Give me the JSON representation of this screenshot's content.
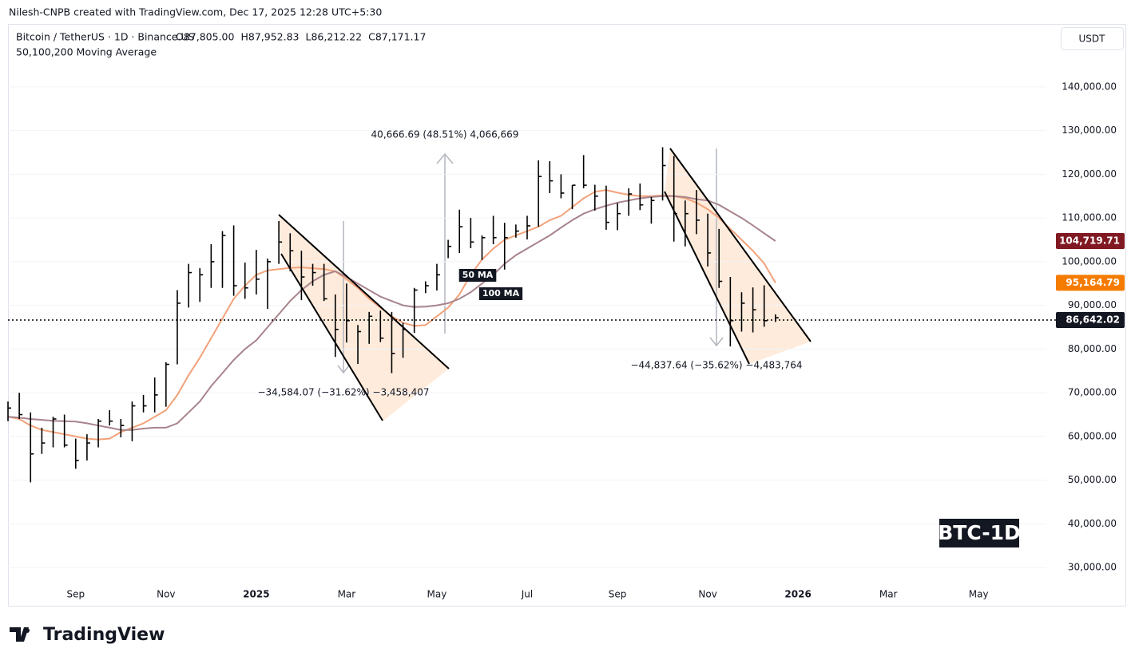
{
  "header": {
    "attribution": "Nilesh-CNPB created with TradingView.com, Dec 17, 2025 12:28 UTC+5:30"
  },
  "footer": {
    "brand": "TradingView"
  },
  "chart_data": {
    "type": "ohlc",
    "title": "Bitcoin / TetherUS · 1D · Binance.US",
    "ohlc_labels": [
      "O87,805.00",
      "H87,952.83",
      "L86,212.22",
      "C87,171.17"
    ],
    "subtitle": "50,100,200 Moving Average",
    "currency": "USDT",
    "watermark": "BTC-1D",
    "measurements": [
      "40,666.69 (48.51%) 4,066,669",
      "−34,584.07 (−31.62%) −3,458,407",
      "−44,837.64 (−35.62%) −4,483,764"
    ],
    "categories": [
      null,
      null,
      null,
      null,
      null,
      null,
      "Sep",
      null,
      null,
      null,
      null,
      null,
      null,
      null,
      "Nov",
      null,
      null,
      null,
      null,
      null,
      null,
      null,
      "2025",
      null,
      null,
      null,
      null,
      null,
      null,
      null,
      "Mar",
      null,
      null,
      null,
      null,
      null,
      null,
      null,
      "May",
      null,
      null,
      null,
      null,
      null,
      null,
      null,
      "Jul",
      null,
      null,
      null,
      null,
      null,
      null,
      null,
      "Sep",
      null,
      null,
      null,
      null,
      null,
      null,
      null,
      "Nov",
      null,
      null,
      null,
      null,
      null,
      null,
      null,
      "2026",
      null,
      null,
      null,
      null,
      null,
      null,
      null,
      "Mar",
      null,
      null,
      null,
      null,
      null,
      null,
      null,
      "May",
      null,
      null,
      null,
      null,
      null,
      null
    ],
    "color": "#000000",
    "high": [
      68000,
      70000,
      65500,
      62000,
      64500,
      65000,
      59500,
      60500,
      64000,
      66000,
      64000,
      68000,
      69500,
      73500,
      77000,
      93500,
      99500,
      98500,
      104000,
      107000,
      108300,
      99800,
      102700,
      100700,
      109300,
      106500,
      102500,
      99500,
      99500,
      92500,
      95000,
      85500,
      88500,
      88800,
      88500,
      86000,
      94000,
      95500,
      99500,
      105000,
      111900,
      110000,
      106000,
      110500,
      108900,
      108500,
      110500,
      123200,
      123000,
      120000,
      117500,
      124400,
      117600,
      117400,
      113400,
      116800,
      117900,
      114800,
      126200,
      124200,
      114000,
      116400,
      111000,
      107500,
      96500,
      93000,
      94100,
      94600,
      87950,
      null,
      null,
      null,
      null,
      null,
      null,
      null,
      null,
      null,
      null,
      null,
      null,
      null,
      null,
      null,
      null,
      null,
      null,
      null,
      null,
      null,
      null,
      null,
      null
    ],
    "low": [
      63500,
      64000,
      49500,
      56000,
      57500,
      57500,
      52600,
      54500,
      57500,
      62500,
      59800,
      58900,
      65500,
      65500,
      66800,
      76500,
      89500,
      90800,
      94000,
      94000,
      92200,
      91500,
      92500,
      89200,
      99500,
      97800,
      91200,
      94500,
      91000,
      78200,
      81500,
      76600,
      81200,
      81600,
      74500,
      78000,
      83700,
      92800,
      93400,
      100800,
      102000,
      103100,
      100400,
      104000,
      98200,
      105500,
      105100,
      108000,
      115700,
      114500,
      112000,
      116800,
      111700,
      107300,
      107200,
      110500,
      111800,
      108700,
      114000,
      104600,
      103500,
      106300,
      98900,
      94000,
      80600,
      84000,
      83800,
      85100,
      86200,
      null,
      null,
      null,
      null,
      null,
      null,
      null,
      null,
      null,
      null,
      null,
      null,
      null,
      null,
      null,
      null,
      null,
      null,
      null,
      null,
      null,
      null,
      null,
      null
    ],
    "close": [
      66500,
      65000,
      56000,
      58500,
      64000,
      58000,
      54500,
      58500,
      63500,
      63500,
      62500,
      67000,
      67000,
      69500,
      76500,
      90500,
      97500,
      97000,
      100000,
      106000,
      94500,
      94000,
      96000,
      100000,
      104500,
      102500,
      96500,
      97500,
      91500,
      84500,
      86500,
      84000,
      87500,
      82500,
      79000,
      84500,
      93500,
      94500,
      97000,
      103500,
      108000,
      104500,
      105500,
      105500,
      105500,
      107000,
      108200,
      119500,
      118500,
      115700,
      117500,
      117500,
      115000,
      109000,
      111000,
      115500,
      113000,
      114000,
      122000,
      111000,
      111000,
      109500,
      102000,
      95500,
      86500,
      90500,
      89000,
      86500,
      87171.17,
      null,
      null,
      null,
      null,
      null,
      null,
      null,
      null,
      null,
      null,
      null,
      null,
      null,
      null,
      null,
      null,
      null,
      null,
      null,
      null,
      null,
      null,
      null,
      null
    ],
    "series": [
      {
        "name": "50 MA",
        "color": "#f2a27a",
        "values": [
          64500,
          64000,
          62500,
          61500,
          61000,
          60500,
          60000,
          59500,
          59300,
          59500,
          61000,
          62000,
          63000,
          64500,
          66000,
          69500,
          74000,
          78000,
          82500,
          87000,
          91500,
          94500,
          97000,
          98000,
          98300,
          98600,
          98700,
          98500,
          98300,
          97800,
          96000,
          94000,
          91500,
          89500,
          87500,
          86000,
          85300,
          85500,
          87500,
          89500,
          92500,
          97000,
          100500,
          103000,
          105000,
          106000,
          107000,
          108000,
          109500,
          110500,
          112500,
          114500,
          116000,
          116400,
          115800,
          115300,
          115000,
          115000,
          115200,
          115000,
          114500,
          113500,
          112000,
          110000,
          107500,
          105000,
          102500,
          99600,
          95164.79,
          null,
          null,
          null,
          null,
          null,
          null,
          null,
          null,
          null,
          null,
          null,
          null,
          null,
          null,
          null,
          null,
          null,
          null,
          null,
          null,
          null,
          null,
          null,
          null
        ]
      },
      {
        "name": "100 MA",
        "color": "#a8848c",
        "values": [
          64500,
          64300,
          64000,
          63800,
          63600,
          63500,
          63400,
          63000,
          62500,
          62000,
          61500,
          61500,
          61800,
          62000,
          62000,
          63000,
          65500,
          68000,
          71500,
          74500,
          77500,
          80000,
          82000,
          85000,
          88000,
          91000,
          93500,
          95500,
          97000,
          97800,
          96500,
          95000,
          93500,
          92000,
          91000,
          90000,
          89600,
          89700,
          90000,
          90500,
          91500,
          93000,
          95000,
          97000,
          99500,
          101500,
          103000,
          104500,
          106000,
          107800,
          109500,
          111000,
          112000,
          112800,
          113500,
          114000,
          114500,
          114800,
          115000,
          115000,
          114800,
          114300,
          114000,
          113000,
          111500,
          110000,
          108300,
          106500,
          104719.71,
          null,
          null,
          null,
          null,
          null,
          null,
          null,
          null,
          null,
          null,
          null,
          null,
          null,
          null,
          null,
          null,
          null,
          null,
          null,
          null,
          null,
          null,
          null,
          null
        ]
      }
    ],
    "price_labels": [
      {
        "value": 104719.71,
        "label": "104,719.71",
        "color": "#801922"
      },
      {
        "value": 95164.79,
        "label": "95,164.79",
        "color": "#f57c00"
      },
      {
        "value": 86642.02,
        "label": "86,642.02",
        "color": "#131722",
        "dotted_line": true
      }
    ],
    "ylim": [
      26000,
      153500
    ],
    "yticks": [
      {
        "value": 30000,
        "label": "30,000.00"
      },
      {
        "value": 40000,
        "label": "40,000.00"
      },
      {
        "value": 50000,
        "label": "50,000.00"
      },
      {
        "value": 60000,
        "label": "60,000.00"
      },
      {
        "value": 70000,
        "label": "70,000.00"
      },
      {
        "value": 80000,
        "label": "80,000.00"
      },
      {
        "value": 90000,
        "label": "90,000.00"
      },
      {
        "value": 100000,
        "label": "100,000.00"
      },
      {
        "value": 110000,
        "label": "110,000.00"
      },
      {
        "value": 120000,
        "label": "120,000.00"
      },
      {
        "value": 130000,
        "label": "130,000.00"
      },
      {
        "value": 140000,
        "label": "140,000.00"
      }
    ],
    "grid": true
  }
}
